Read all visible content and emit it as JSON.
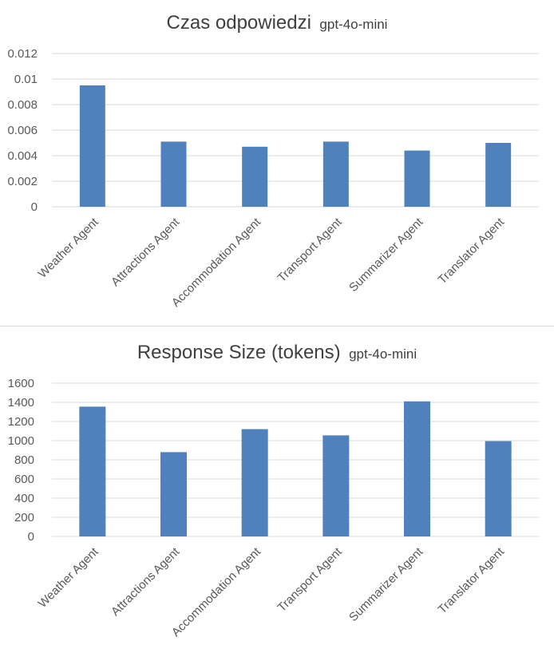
{
  "charts": [
    {
      "title_main": "Czas odpowiedzi",
      "title_sub": "gpt-4o-mini",
      "chart_data": {
        "type": "bar",
        "title": "Czas odpowiedzi gpt-4o-mini",
        "categories": [
          "Weather Agent",
          "Attractions Agent",
          "Accommodation Agent",
          "Transport Agent",
          "Summarizer Agent",
          "Translator Agent"
        ],
        "values": [
          0.0095,
          0.0051,
          0.0047,
          0.0051,
          0.0044,
          0.005
        ],
        "yticks": [
          "0",
          "0.002",
          "0.004",
          "0.006",
          "0.008",
          "0.01",
          "0.012"
        ],
        "ylim": [
          0,
          0.012
        ],
        "xlabel": "",
        "ylabel": "",
        "grid": true,
        "bar_color": "#4f81bd"
      }
    },
    {
      "title_main": "Response Size (tokens)",
      "title_sub": "gpt-4o-mini",
      "chart_data": {
        "type": "bar",
        "title": "Response Size (tokens) gpt-4o-mini",
        "categories": [
          "Weather Agent",
          "Attractions Agent",
          "Accommodation Agent",
          "Transport Agent",
          "Summarizer Agent",
          "Translator Agent"
        ],
        "values": [
          1355,
          880,
          1120,
          1055,
          1410,
          995
        ],
        "yticks": [
          "0",
          "200",
          "400",
          "600",
          "800",
          "1000",
          "1200",
          "1400",
          "1600"
        ],
        "ylim": [
          0,
          1600
        ],
        "xlabel": "",
        "ylabel": "",
        "grid": true,
        "bar_color": "#4f81bd"
      }
    }
  ]
}
